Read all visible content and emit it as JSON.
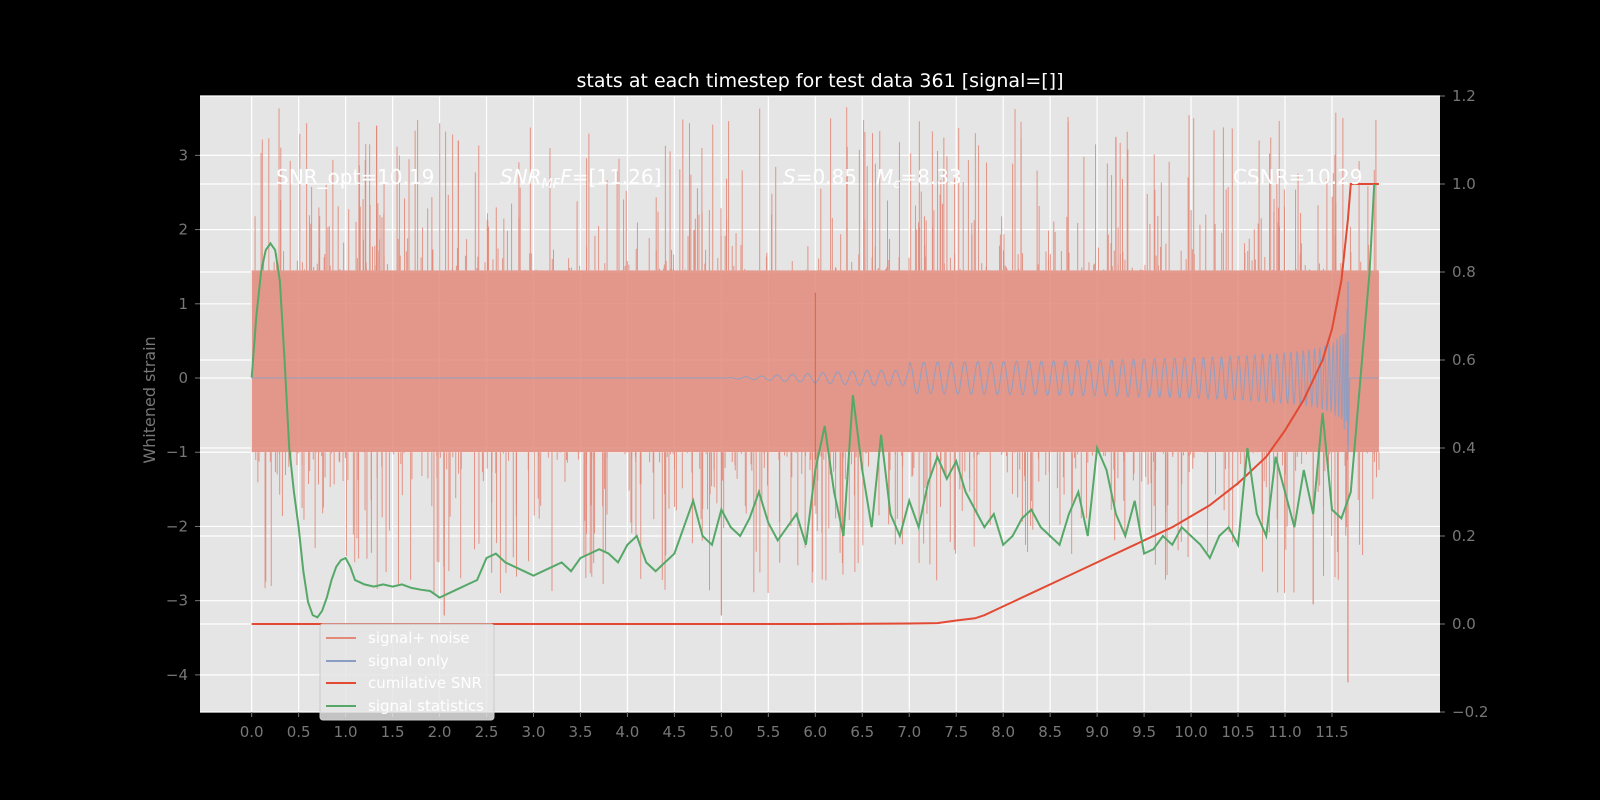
{
  "chart_data": {
    "type": "line",
    "title": "stats at each timestep for test data 361 [signal=[]]",
    "xlabel": "",
    "ylabel": "Whitened strain",
    "xlim": [
      -0.55,
      12.65
    ],
    "ylim_left": [
      -4.5,
      3.8
    ],
    "ylim_right": [
      -0.2,
      1.2
    ],
    "x_ticks": [
      "0.0",
      "0.5",
      "1.0",
      "1.5",
      "2.0",
      "2.5",
      "3.0",
      "3.5",
      "4.0",
      "4.5",
      "5.0",
      "5.5",
      "6.0",
      "6.5",
      "7.0",
      "7.5",
      "8.0",
      "8.5",
      "9.0",
      "9.5",
      "10.0",
      "10.5",
      "11.0",
      "11.5"
    ],
    "y_ticks_left": [
      3,
      2,
      1,
      0,
      -1,
      -2,
      -3,
      -4
    ],
    "y_ticks_left_labels": [
      "3",
      "2",
      "1",
      "0",
      "−1",
      "−2",
      "−3",
      "−4"
    ],
    "y_ticks_right": [
      1.2,
      1.0,
      0.8,
      0.6,
      0.4,
      0.2,
      0.0,
      -0.2
    ],
    "y_ticks_right_labels": [
      "1.2",
      "1.0",
      "0.8",
      "0.6",
      "0.4",
      "0.2",
      "0.0",
      "−0.2"
    ],
    "grid": true,
    "legend_position": "lower-left",
    "annotations": {
      "snr_opt": "SNR_opt=10.19",
      "snr_mf_label": "SNR",
      "snr_mf_sub": "MF",
      "snr_mf_value": "=[11.26]",
      "s_label": "S",
      "s_value": "=0.85",
      "mc_label": "M",
      "mc_sub": "c",
      "mc_value": "=8.33",
      "csnr": "CSNR=10.29"
    },
    "series": [
      {
        "name": "signal+ noise",
        "axis": "left",
        "color": "#e2897a",
        "description_kind": "noise_band",
        "x_range": [
          0.0,
          12.0
        ],
        "envelope_upper": 1.45,
        "envelope_lower": -1.0,
        "spike_max": 3.4,
        "spike_min": -4.1
      },
      {
        "name": "signal only",
        "axis": "left",
        "color": "#8a9ec5",
        "description_kind": "chirp",
        "x_range": [
          0.0,
          12.0
        ],
        "peak_time": 11.67,
        "peak_amplitude": 1.3,
        "trough_amplitude": -0.9
      },
      {
        "name": "cumilative SNR",
        "axis": "right",
        "color": "#e24a33",
        "x": [
          0.0,
          1.0,
          2.0,
          3.0,
          4.0,
          5.0,
          6.0,
          7.0,
          7.3,
          7.5,
          7.7,
          7.8,
          8.0,
          8.3,
          8.6,
          9.0,
          9.4,
          9.8,
          10.2,
          10.5,
          10.8,
          11.0,
          11.2,
          11.4,
          11.5,
          11.6,
          11.67,
          11.7,
          12.0
        ],
        "y": [
          0.0,
          0.0,
          0.0,
          0.0,
          0.0,
          0.0,
          0.0,
          0.001,
          0.002,
          0.008,
          0.013,
          0.02,
          0.04,
          0.07,
          0.1,
          0.14,
          0.18,
          0.22,
          0.27,
          0.32,
          0.38,
          0.44,
          0.51,
          0.6,
          0.67,
          0.78,
          0.92,
          1.0,
          1.0
        ]
      },
      {
        "name": "signal statistics",
        "axis": "right",
        "color": "#55a868",
        "x": [
          0.0,
          0.05,
          0.1,
          0.15,
          0.2,
          0.25,
          0.3,
          0.35,
          0.4,
          0.45,
          0.5,
          0.55,
          0.6,
          0.65,
          0.7,
          0.75,
          0.8,
          0.85,
          0.9,
          0.95,
          1.0,
          1.05,
          1.1,
          1.15,
          1.2,
          1.3,
          1.4,
          1.5,
          1.6,
          1.7,
          1.8,
          1.9,
          2.0,
          2.1,
          2.2,
          2.3,
          2.4,
          2.5,
          2.6,
          2.7,
          2.8,
          2.9,
          3.0,
          3.1,
          3.2,
          3.3,
          3.4,
          3.5,
          3.6,
          3.7,
          3.8,
          3.9,
          4.0,
          4.1,
          4.2,
          4.3,
          4.4,
          4.5,
          4.6,
          4.7,
          4.8,
          4.9,
          5.0,
          5.1,
          5.2,
          5.3,
          5.4,
          5.5,
          5.6,
          5.7,
          5.8,
          5.9,
          6.0,
          6.1,
          6.2,
          6.3,
          6.4,
          6.5,
          6.6,
          6.7,
          6.8,
          6.9,
          7.0,
          7.1,
          7.2,
          7.3,
          7.4,
          7.5,
          7.6,
          7.7,
          7.8,
          7.9,
          8.0,
          8.1,
          8.2,
          8.3,
          8.4,
          8.5,
          8.6,
          8.7,
          8.8,
          8.9,
          9.0,
          9.1,
          9.2,
          9.3,
          9.4,
          9.5,
          9.6,
          9.7,
          9.8,
          9.9,
          10.0,
          10.1,
          10.2,
          10.3,
          10.4,
          10.5,
          10.6,
          10.7,
          10.8,
          10.9,
          11.0,
          11.1,
          11.2,
          11.3,
          11.4,
          11.5,
          11.6,
          11.7,
          11.8,
          11.9,
          11.95
        ],
        "y": [
          0.56,
          0.7,
          0.8,
          0.85,
          0.865,
          0.85,
          0.78,
          0.6,
          0.4,
          0.3,
          0.22,
          0.12,
          0.05,
          0.02,
          0.015,
          0.03,
          0.06,
          0.1,
          0.13,
          0.145,
          0.15,
          0.13,
          0.1,
          0.095,
          0.09,
          0.085,
          0.09,
          0.085,
          0.09,
          0.082,
          0.078,
          0.075,
          0.06,
          0.07,
          0.08,
          0.09,
          0.1,
          0.15,
          0.16,
          0.14,
          0.13,
          0.12,
          0.11,
          0.12,
          0.13,
          0.14,
          0.12,
          0.15,
          0.16,
          0.17,
          0.16,
          0.14,
          0.18,
          0.2,
          0.14,
          0.12,
          0.14,
          0.16,
          0.22,
          0.28,
          0.2,
          0.18,
          0.26,
          0.22,
          0.2,
          0.24,
          0.3,
          0.23,
          0.19,
          0.22,
          0.25,
          0.18,
          0.35,
          0.45,
          0.3,
          0.2,
          0.52,
          0.35,
          0.22,
          0.43,
          0.25,
          0.2,
          0.28,
          0.22,
          0.32,
          0.38,
          0.33,
          0.37,
          0.3,
          0.26,
          0.22,
          0.25,
          0.18,
          0.2,
          0.24,
          0.26,
          0.22,
          0.2,
          0.18,
          0.25,
          0.3,
          0.2,
          0.4,
          0.35,
          0.25,
          0.2,
          0.28,
          0.16,
          0.17,
          0.2,
          0.18,
          0.22,
          0.2,
          0.18,
          0.15,
          0.2,
          0.22,
          0.18,
          0.4,
          0.25,
          0.2,
          0.38,
          0.3,
          0.22,
          0.35,
          0.25,
          0.48,
          0.26,
          0.24,
          0.3,
          0.55,
          0.8,
          1.0
        ]
      }
    ]
  }
}
